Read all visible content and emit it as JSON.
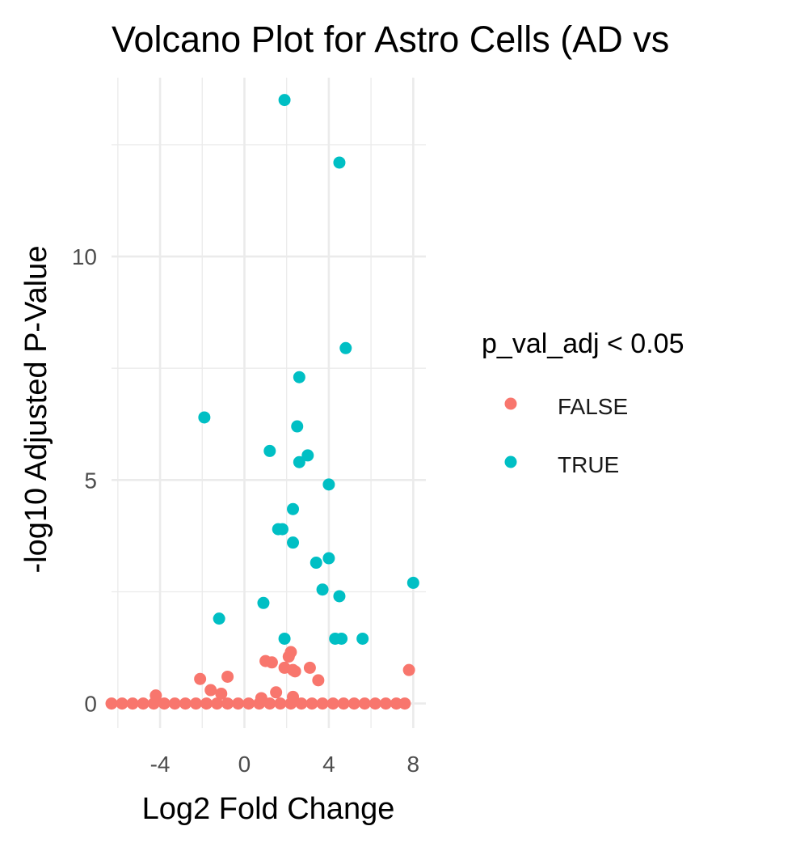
{
  "chart_data": {
    "type": "scatter",
    "title": "Volcano Plot for Astro Cells (AD vs",
    "xlabel": "Log2 Fold Change",
    "ylabel": "-log10 Adjusted P-Value",
    "xlim": [
      -6.3,
      8.6
    ],
    "ylim": [
      -0.55,
      14.0
    ],
    "x_ticks": [
      -4,
      0,
      4,
      8
    ],
    "x_tick_labels": [
      "-4",
      "0",
      "4",
      "8"
    ],
    "y_ticks": [
      0,
      5,
      10
    ],
    "y_tick_labels": [
      "0",
      "5",
      "10"
    ],
    "grid": true,
    "legend": {
      "title": "p_val_adj < 0.05",
      "position": "right"
    },
    "series": [
      {
        "name": "FALSE",
        "color": "#F8766D",
        "points": [
          {
            "x": -6.3,
            "y": 0
          },
          {
            "x": -5.8,
            "y": 0
          },
          {
            "x": -5.3,
            "y": 0
          },
          {
            "x": -4.8,
            "y": 0
          },
          {
            "x": -4.3,
            "y": 0
          },
          {
            "x": -3.8,
            "y": 0
          },
          {
            "x": -3.3,
            "y": 0
          },
          {
            "x": -2.8,
            "y": 0
          },
          {
            "x": -2.3,
            "y": 0
          },
          {
            "x": -1.8,
            "y": 0
          },
          {
            "x": -1.3,
            "y": 0
          },
          {
            "x": -0.8,
            "y": 0
          },
          {
            "x": -0.3,
            "y": 0
          },
          {
            "x": 0.2,
            "y": 0
          },
          {
            "x": 0.7,
            "y": 0
          },
          {
            "x": 1.2,
            "y": 0
          },
          {
            "x": 1.7,
            "y": 0
          },
          {
            "x": 2.2,
            "y": 0
          },
          {
            "x": 2.7,
            "y": 0
          },
          {
            "x": 3.2,
            "y": 0
          },
          {
            "x": 3.7,
            "y": 0
          },
          {
            "x": 4.2,
            "y": 0
          },
          {
            "x": 4.7,
            "y": 0
          },
          {
            "x": 5.2,
            "y": 0
          },
          {
            "x": 5.7,
            "y": 0
          },
          {
            "x": 6.2,
            "y": 0
          },
          {
            "x": 6.7,
            "y": 0
          },
          {
            "x": 7.2,
            "y": 0
          },
          {
            "x": 7.6,
            "y": 0
          },
          {
            "x": -4.2,
            "y": 0.18
          },
          {
            "x": -2.1,
            "y": 0.55
          },
          {
            "x": -1.6,
            "y": 0.3
          },
          {
            "x": -1.1,
            "y": 0.22
          },
          {
            "x": -0.8,
            "y": 0.6
          },
          {
            "x": 0.8,
            "y": 0.12
          },
          {
            "x": 1.0,
            "y": 0.95
          },
          {
            "x": 1.3,
            "y": 0.92
          },
          {
            "x": 1.5,
            "y": 0.25
          },
          {
            "x": 1.9,
            "y": 0.8
          },
          {
            "x": 2.1,
            "y": 1.05
          },
          {
            "x": 2.2,
            "y": 1.15
          },
          {
            "x": 2.3,
            "y": 0.75
          },
          {
            "x": 2.4,
            "y": 0.72
          },
          {
            "x": 2.3,
            "y": 0.15
          },
          {
            "x": 3.1,
            "y": 0.8
          },
          {
            "x": 3.5,
            "y": 0.52
          },
          {
            "x": 7.8,
            "y": 0.75
          }
        ]
      },
      {
        "name": "TRUE",
        "color": "#00BFC4",
        "points": [
          {
            "x": 1.9,
            "y": 13.5
          },
          {
            "x": 4.5,
            "y": 12.1
          },
          {
            "x": 4.8,
            "y": 7.95
          },
          {
            "x": 2.6,
            "y": 7.3
          },
          {
            "x": -1.9,
            "y": 6.4
          },
          {
            "x": 2.5,
            "y": 6.2
          },
          {
            "x": 1.2,
            "y": 5.65
          },
          {
            "x": 3.0,
            "y": 5.55
          },
          {
            "x": 2.6,
            "y": 5.4
          },
          {
            "x": 4.0,
            "y": 4.9
          },
          {
            "x": 2.3,
            "y": 4.35
          },
          {
            "x": 1.6,
            "y": 3.9
          },
          {
            "x": 1.8,
            "y": 3.9
          },
          {
            "x": 2.3,
            "y": 3.6
          },
          {
            "x": 4.0,
            "y": 3.25
          },
          {
            "x": 3.4,
            "y": 3.15
          },
          {
            "x": 8.0,
            "y": 2.7
          },
          {
            "x": 3.7,
            "y": 2.55
          },
          {
            "x": 4.5,
            "y": 2.4
          },
          {
            "x": 0.9,
            "y": 2.25
          },
          {
            "x": -1.2,
            "y": 1.9
          },
          {
            "x": 1.9,
            "y": 1.45
          },
          {
            "x": 4.3,
            "y": 1.45
          },
          {
            "x": 4.6,
            "y": 1.45
          },
          {
            "x": 5.6,
            "y": 1.45
          }
        ]
      }
    ]
  }
}
